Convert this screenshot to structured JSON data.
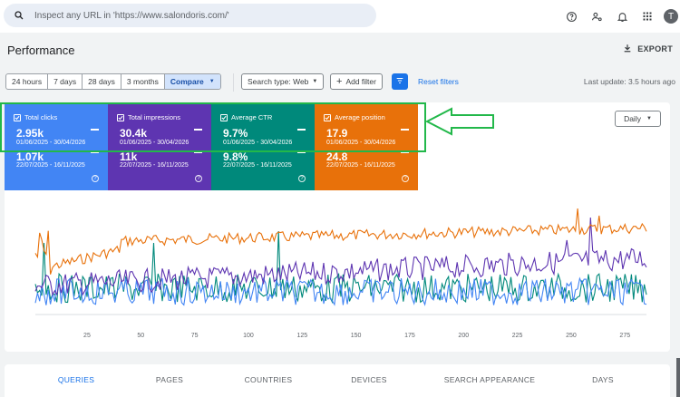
{
  "search": {
    "placeholder": "Inspect any URL in 'https://www.salondoris.com/'"
  },
  "header": {
    "title": "Performance",
    "export_label": "EXPORT",
    "avatar_letter": "T"
  },
  "filters": {
    "ranges": [
      "24 hours",
      "7 days",
      "28 days",
      "3 months"
    ],
    "compare_label": "Compare",
    "search_type": "Search type: Web",
    "add_filter": "Add filter",
    "reset": "Reset filters",
    "last_update": "Last update: 3.5 hours ago"
  },
  "metrics": [
    {
      "label": "Total clicks",
      "value1": "2.95k",
      "range1": "01/06/2025 - 30/04/2026",
      "value2": "1.07k",
      "range2": "22/07/2025 - 16/11/2025",
      "color": "#4285f4"
    },
    {
      "label": "Total impressions",
      "value1": "30.4k",
      "range1": "01/06/2025 - 30/04/2026",
      "value2": "11k",
      "range2": "22/07/2025 - 16/11/2025",
      "color": "#5e35b1"
    },
    {
      "label": "Average CTR",
      "value1": "9.7%",
      "range1": "01/06/2025 - 30/04/2026",
      "value2": "9.8%",
      "range2": "22/07/2025 - 16/11/2025",
      "color": "#00897b"
    },
    {
      "label": "Average position",
      "value1": "17.9",
      "range1": "01/06/2025 - 30/04/2026",
      "value2": "24.8",
      "range2": "22/07/2025 - 16/11/2025",
      "color": "#e8710a"
    }
  ],
  "granularity": "Daily",
  "chart_data": {
    "type": "line",
    "x_ticks": [
      "25",
      "50",
      "75",
      "100",
      "125",
      "150",
      "175",
      "200",
      "225",
      "250",
      "275"
    ],
    "x_range": [
      1,
      285
    ],
    "series_colors": {
      "clicks": "#4285f4",
      "impressions": "#5e35b1",
      "ctr": "#00897b",
      "position": "#e8710a"
    }
  },
  "tabs": [
    "QUERIES",
    "PAGES",
    "COUNTRIES",
    "DEVICES",
    "SEARCH APPEARANCE",
    "DAYS"
  ]
}
